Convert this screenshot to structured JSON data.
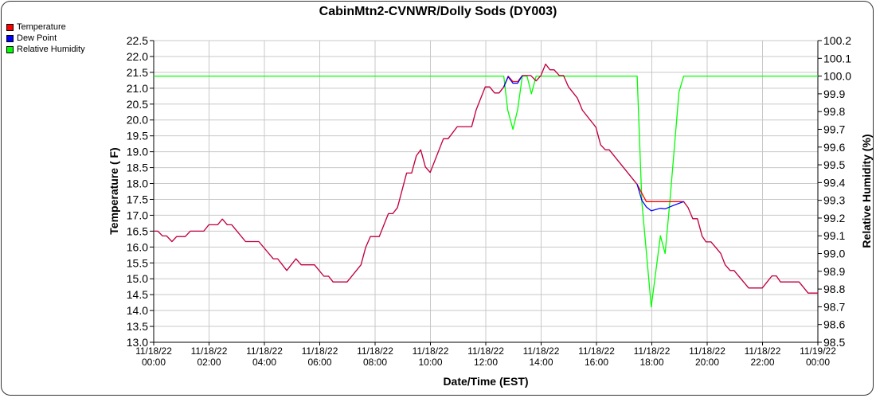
{
  "chart_data": {
    "type": "line",
    "title": "CabinMtn2-CVNWR/Dolly Sods (DY003)",
    "xlabel": "Date/Time (EST)",
    "ylabel": "Temperature ( F)",
    "y2label": "Relative Humidity (%)",
    "x_unit": "hours since 11/18/22 00:00",
    "xlim": [
      0,
      24
    ],
    "ylim": [
      13.0,
      22.5
    ],
    "y2lim": [
      98.5,
      100.2
    ],
    "grid": true,
    "legend_position": "top-left",
    "x_ticks": [
      {
        "hour": 0,
        "date": "11/18/22",
        "time": "00:00"
      },
      {
        "hour": 2,
        "date": "11/18/22",
        "time": "02:00"
      },
      {
        "hour": 4,
        "date": "11/18/22",
        "time": "04:00"
      },
      {
        "hour": 6,
        "date": "11/18/22",
        "time": "06:00"
      },
      {
        "hour": 8,
        "date": "11/18/22",
        "time": "08:00"
      },
      {
        "hour": 10,
        "date": "11/18/22",
        "time": "10:00"
      },
      {
        "hour": 12,
        "date": "11/18/22",
        "time": "12:00"
      },
      {
        "hour": 14,
        "date": "11/18/22",
        "time": "14:00"
      },
      {
        "hour": 16,
        "date": "11/18/22",
        "time": "16:00"
      },
      {
        "hour": 18,
        "date": "11/18/22",
        "time": "18:00"
      },
      {
        "hour": 20,
        "date": "11/18/22",
        "time": "20:00"
      },
      {
        "hour": 22,
        "date": "11/18/22",
        "time": "22:00"
      },
      {
        "hour": 24,
        "date": "11/19/22",
        "time": "00:00"
      }
    ],
    "y_ticks": [
      "13.0",
      "13.5",
      "14.0",
      "14.5",
      "15.0",
      "15.5",
      "16.0",
      "16.5",
      "17.0",
      "17.5",
      "18.0",
      "18.5",
      "19.0",
      "19.5",
      "20.0",
      "20.5",
      "21.0",
      "21.5",
      "22.0",
      "22.5"
    ],
    "y2_ticks": [
      "98.5",
      "98.6",
      "98.7",
      "98.8",
      "98.9",
      "99.0",
      "99.1",
      "99.2",
      "99.3",
      "99.4",
      "99.5",
      "99.6",
      "99.7",
      "99.8",
      "99.9",
      "100.0",
      "100.1",
      "100.2"
    ],
    "series": [
      {
        "name": "Temperature",
        "color": "#ff0000",
        "axis": "left",
        "points": [
          [
            0,
            16.5
          ],
          [
            0.15,
            16.5
          ],
          [
            0.32,
            16.35
          ],
          [
            0.47,
            16.35
          ],
          [
            0.66,
            16.17
          ],
          [
            0.83,
            16.33
          ],
          [
            1.14,
            16.33
          ],
          [
            1.32,
            16.5
          ],
          [
            1.81,
            16.5
          ],
          [
            1.99,
            16.7
          ],
          [
            2.31,
            16.7
          ],
          [
            2.48,
            16.88
          ],
          [
            2.66,
            16.7
          ],
          [
            2.82,
            16.7
          ],
          [
            3.32,
            16.17
          ],
          [
            3.8,
            16.17
          ],
          [
            4.32,
            15.63
          ],
          [
            4.48,
            15.63
          ],
          [
            4.81,
            15.26
          ],
          [
            5.14,
            15.63
          ],
          [
            5.33,
            15.44
          ],
          [
            5.81,
            15.44
          ],
          [
            6.15,
            15.08
          ],
          [
            6.32,
            15.08
          ],
          [
            6.48,
            14.9
          ],
          [
            6.99,
            14.9
          ],
          [
            7.49,
            15.44
          ],
          [
            7.66,
            15.99
          ],
          [
            7.83,
            16.33
          ],
          [
            8.15,
            16.33
          ],
          [
            8.48,
            17.05
          ],
          [
            8.64,
            17.05
          ],
          [
            8.81,
            17.24
          ],
          [
            9.14,
            18.33
          ],
          [
            9.32,
            18.33
          ],
          [
            9.49,
            18.87
          ],
          [
            9.65,
            19.06
          ],
          [
            9.82,
            18.52
          ],
          [
            9.99,
            18.35
          ],
          [
            10.47,
            19.41
          ],
          [
            10.64,
            19.41
          ],
          [
            10.97,
            19.79
          ],
          [
            11.49,
            19.79
          ],
          [
            11.65,
            20.31
          ],
          [
            11.98,
            21.04
          ],
          [
            12.14,
            21.04
          ],
          [
            12.32,
            20.85
          ],
          [
            12.48,
            20.85
          ],
          [
            12.65,
            21.04
          ],
          [
            12.81,
            21.38
          ],
          [
            12.98,
            21.21
          ],
          [
            13.15,
            21.21
          ],
          [
            13.32,
            21.4
          ],
          [
            13.63,
            21.4
          ],
          [
            13.82,
            21.23
          ],
          [
            13.99,
            21.4
          ],
          [
            14.16,
            21.76
          ],
          [
            14.32,
            21.58
          ],
          [
            14.47,
            21.58
          ],
          [
            14.66,
            21.4
          ],
          [
            14.81,
            21.4
          ],
          [
            14.99,
            21.04
          ],
          [
            15.31,
            20.69
          ],
          [
            15.49,
            20.31
          ],
          [
            15.98,
            19.77
          ],
          [
            16.15,
            19.22
          ],
          [
            16.32,
            19.06
          ],
          [
            16.46,
            19.06
          ],
          [
            17.47,
            17.97
          ],
          [
            17.8,
            17.43
          ],
          [
            19.15,
            17.43
          ],
          [
            19.31,
            17.24
          ],
          [
            19.48,
            16.89
          ],
          [
            19.65,
            16.89
          ],
          [
            19.82,
            16.34
          ],
          [
            19.96,
            16.16
          ],
          [
            20.14,
            16.16
          ],
          [
            20.49,
            15.8
          ],
          [
            20.65,
            15.44
          ],
          [
            20.83,
            15.26
          ],
          [
            20.97,
            15.26
          ],
          [
            21.5,
            14.71
          ],
          [
            21.99,
            14.71
          ],
          [
            22.34,
            15.09
          ],
          [
            22.5,
            15.09
          ],
          [
            22.65,
            14.9
          ],
          [
            23.32,
            14.9
          ],
          [
            23.65,
            14.55
          ],
          [
            24,
            14.55
          ]
        ]
      },
      {
        "name": "Dew Point",
        "color": "#0000ff",
        "axis": "left",
        "points": [
          [
            0,
            16.5
          ],
          [
            0.15,
            16.5
          ],
          [
            0.32,
            16.35
          ],
          [
            0.47,
            16.35
          ],
          [
            0.66,
            16.17
          ],
          [
            0.83,
            16.33
          ],
          [
            1.14,
            16.33
          ],
          [
            1.32,
            16.5
          ],
          [
            1.81,
            16.5
          ],
          [
            1.99,
            16.7
          ],
          [
            2.31,
            16.7
          ],
          [
            2.48,
            16.88
          ],
          [
            2.66,
            16.7
          ],
          [
            2.82,
            16.7
          ],
          [
            3.32,
            16.17
          ],
          [
            3.8,
            16.17
          ],
          [
            4.32,
            15.63
          ],
          [
            4.48,
            15.63
          ],
          [
            4.81,
            15.26
          ],
          [
            5.14,
            15.63
          ],
          [
            5.33,
            15.44
          ],
          [
            5.81,
            15.44
          ],
          [
            6.15,
            15.08
          ],
          [
            6.32,
            15.08
          ],
          [
            6.48,
            14.9
          ],
          [
            6.99,
            14.9
          ],
          [
            7.49,
            15.44
          ],
          [
            7.66,
            15.99
          ],
          [
            7.83,
            16.33
          ],
          [
            8.15,
            16.33
          ],
          [
            8.48,
            17.05
          ],
          [
            8.64,
            17.05
          ],
          [
            8.81,
            17.24
          ],
          [
            9.14,
            18.33
          ],
          [
            9.32,
            18.33
          ],
          [
            9.49,
            18.87
          ],
          [
            9.65,
            19.06
          ],
          [
            9.82,
            18.52
          ],
          [
            9.99,
            18.35
          ],
          [
            10.47,
            19.41
          ],
          [
            10.64,
            19.41
          ],
          [
            10.97,
            19.79
          ],
          [
            11.49,
            19.79
          ],
          [
            11.65,
            20.31
          ],
          [
            11.98,
            21.04
          ],
          [
            12.14,
            21.04
          ],
          [
            12.32,
            20.85
          ],
          [
            12.48,
            20.85
          ],
          [
            12.65,
            21.04
          ],
          [
            12.81,
            21.36
          ],
          [
            12.98,
            21.16
          ],
          [
            13.15,
            21.16
          ],
          [
            13.32,
            21.4
          ],
          [
            13.63,
            21.4
          ],
          [
            13.82,
            21.23
          ],
          [
            13.99,
            21.4
          ],
          [
            14.16,
            21.76
          ],
          [
            14.32,
            21.58
          ],
          [
            14.47,
            21.58
          ],
          [
            14.66,
            21.4
          ],
          [
            14.81,
            21.4
          ],
          [
            14.99,
            21.04
          ],
          [
            15.31,
            20.69
          ],
          [
            15.49,
            20.31
          ],
          [
            15.98,
            19.77
          ],
          [
            16.15,
            19.22
          ],
          [
            16.32,
            19.06
          ],
          [
            16.46,
            19.06
          ],
          [
            17.47,
            17.97
          ],
          [
            17.64,
            17.47
          ],
          [
            17.8,
            17.26
          ],
          [
            17.98,
            17.14
          ],
          [
            18.31,
            17.22
          ],
          [
            18.48,
            17.2
          ],
          [
            18.81,
            17.32
          ],
          [
            19.15,
            17.43
          ],
          [
            19.31,
            17.24
          ],
          [
            19.48,
            16.89
          ],
          [
            19.65,
            16.89
          ],
          [
            19.82,
            16.34
          ],
          [
            19.96,
            16.16
          ],
          [
            20.14,
            16.16
          ],
          [
            20.49,
            15.8
          ],
          [
            20.65,
            15.44
          ],
          [
            20.83,
            15.26
          ],
          [
            20.97,
            15.26
          ],
          [
            21.5,
            14.71
          ],
          [
            21.99,
            14.71
          ],
          [
            22.34,
            15.09
          ],
          [
            22.5,
            15.09
          ],
          [
            22.65,
            14.9
          ],
          [
            23.32,
            14.9
          ],
          [
            23.65,
            14.55
          ],
          [
            24,
            14.55
          ]
        ]
      },
      {
        "name": "Relative Humidity",
        "color": "#00ff00",
        "axis": "right",
        "points": [
          [
            0,
            100.0
          ],
          [
            12.65,
            100.0
          ],
          [
            12.79,
            99.81
          ],
          [
            12.98,
            99.7
          ],
          [
            13.15,
            99.81
          ],
          [
            13.32,
            100.0
          ],
          [
            13.49,
            100.0
          ],
          [
            13.65,
            99.9
          ],
          [
            13.82,
            100.0
          ],
          [
            17.47,
            100.0
          ],
          [
            17.64,
            99.29
          ],
          [
            17.98,
            98.7
          ],
          [
            18.31,
            99.1
          ],
          [
            18.48,
            99.0
          ],
          [
            18.65,
            99.29
          ],
          [
            18.98,
            99.91
          ],
          [
            19.15,
            100.0
          ],
          [
            24,
            100.0
          ]
        ]
      }
    ]
  }
}
